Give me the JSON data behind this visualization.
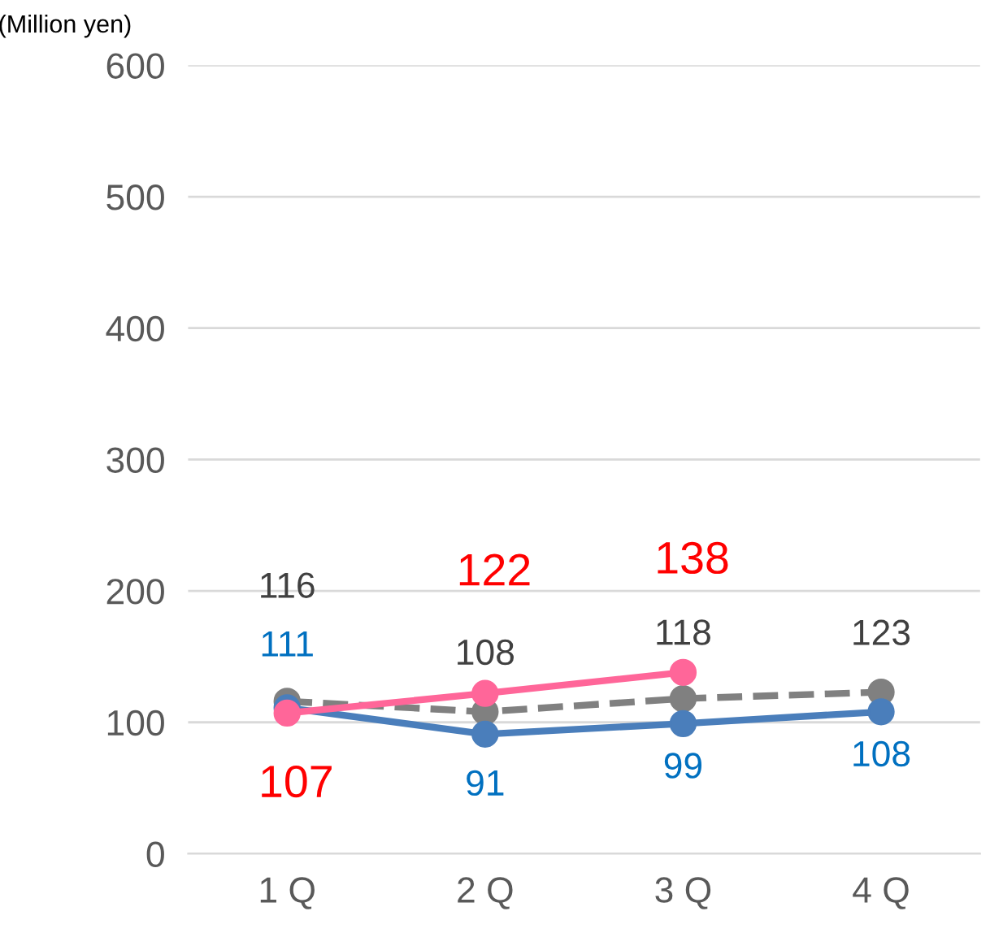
{
  "chart_data": {
    "type": "line",
    "ylabel": "(Million yen)",
    "categories": [
      "1 Q",
      "2 Q",
      "3 Q",
      "4 Q"
    ],
    "series": [
      {
        "color": "#808080",
        "line_style": "dashed",
        "values": [
          116,
          108,
          118,
          123
        ]
      },
      {
        "color": "#4a7ebb",
        "line_style": "solid",
        "values": [
          111,
          91,
          99,
          108
        ]
      },
      {
        "color": "#ff6699",
        "line_style": "solid",
        "values": [
          107,
          122,
          138,
          null
        ]
      }
    ],
    "ylim": [
      0,
      600
    ],
    "yticks": [
      0,
      100,
      200,
      300,
      400,
      500,
      600
    ],
    "grid": "y",
    "marker": "circle",
    "data_labels": true,
    "legend": false
  }
}
